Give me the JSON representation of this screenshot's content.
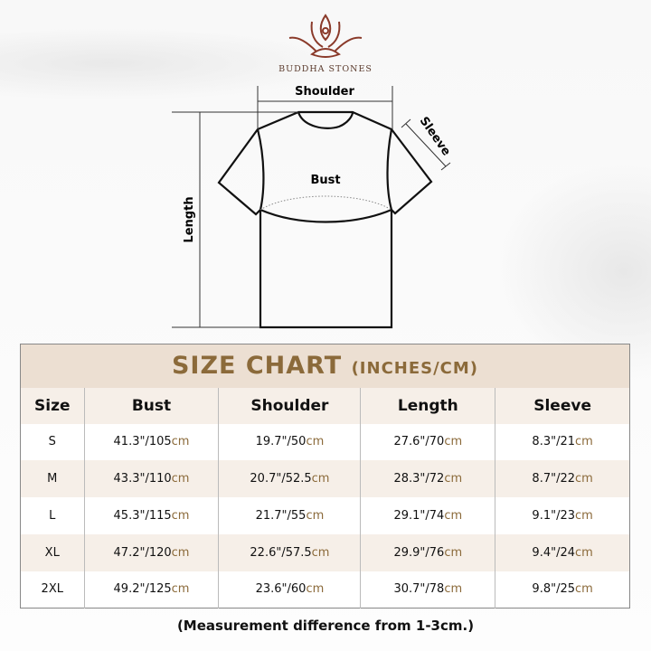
{
  "brand": {
    "name": "BUDDHA STONES"
  },
  "diagram": {
    "shoulder": "Shoulder",
    "sleeve": "Sleeve",
    "bust": "Bust",
    "length": "Length"
  },
  "chart": {
    "title": "SIZE CHART",
    "subtitle": "(INCHES/CM)",
    "headers": [
      "Size",
      "Bust",
      "Shoulder",
      "Length",
      "Sleeve"
    ],
    "unit": "cm",
    "rows": [
      [
        "S",
        "41.3\"/105",
        "19.7\"/50",
        "27.6\"/70",
        "8.3\"/21"
      ],
      [
        "M",
        "43.3\"/110",
        "20.7\"/52.5",
        "28.3\"/72",
        "8.7\"/22"
      ],
      [
        "L",
        "45.3\"/115",
        "21.7\"/55",
        "29.1\"/74",
        "9.1\"/23"
      ],
      [
        "XL",
        "47.2\"/120",
        "22.6\"/57.5",
        "29.9\"/76",
        "9.4\"/24"
      ],
      [
        "2XL",
        "49.2\"/125",
        "23.6\"/60",
        "30.7\"/78",
        "9.8\"/25"
      ]
    ]
  },
  "note": "(Measurement difference from 1-3cm.)",
  "colors": {
    "accent": "#8b6a3a",
    "band": "#ecdfd2",
    "row_alt": "#f6efe8",
    "logo": "#8a3a2a"
  }
}
